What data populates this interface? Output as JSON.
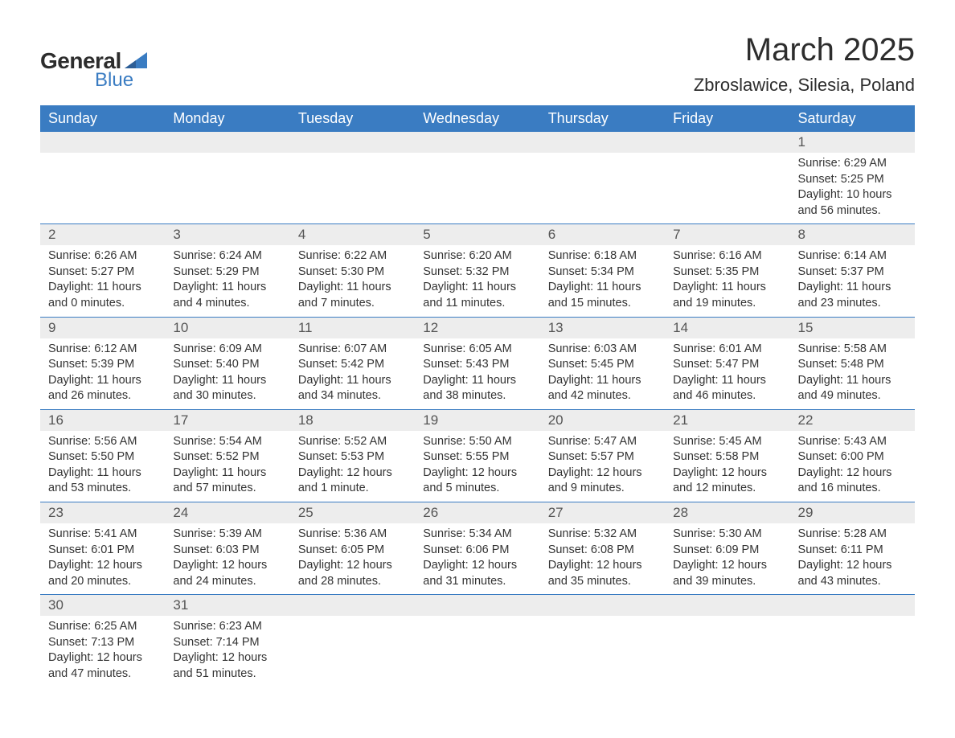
{
  "logo": {
    "text_general": "General",
    "text_blue": "Blue"
  },
  "title": "March 2025",
  "location": "Zbroslawice, Silesia, Poland",
  "colors": {
    "header_bg": "#3a7cc2",
    "header_text": "#ffffff",
    "daynum_bg": "#ededed",
    "text": "#333333",
    "border": "#3a7cc2",
    "page_bg": "#ffffff"
  },
  "typography": {
    "title_fontsize": 40,
    "location_fontsize": 22,
    "weekday_fontsize": 18,
    "daynum_fontsize": 17,
    "body_fontsize": 14.5
  },
  "weekdays": [
    "Sunday",
    "Monday",
    "Tuesday",
    "Wednesday",
    "Thursday",
    "Friday",
    "Saturday"
  ],
  "labels": {
    "sunrise": "Sunrise",
    "sunset": "Sunset",
    "daylight": "Daylight"
  },
  "weeks": [
    [
      null,
      null,
      null,
      null,
      null,
      null,
      {
        "day": "1",
        "sunrise": "6:29 AM",
        "sunset": "5:25 PM",
        "daylight": "10 hours and 56 minutes."
      }
    ],
    [
      {
        "day": "2",
        "sunrise": "6:26 AM",
        "sunset": "5:27 PM",
        "daylight": "11 hours and 0 minutes."
      },
      {
        "day": "3",
        "sunrise": "6:24 AM",
        "sunset": "5:29 PM",
        "daylight": "11 hours and 4 minutes."
      },
      {
        "day": "4",
        "sunrise": "6:22 AM",
        "sunset": "5:30 PM",
        "daylight": "11 hours and 7 minutes."
      },
      {
        "day": "5",
        "sunrise": "6:20 AM",
        "sunset": "5:32 PM",
        "daylight": "11 hours and 11 minutes."
      },
      {
        "day": "6",
        "sunrise": "6:18 AM",
        "sunset": "5:34 PM",
        "daylight": "11 hours and 15 minutes."
      },
      {
        "day": "7",
        "sunrise": "6:16 AM",
        "sunset": "5:35 PM",
        "daylight": "11 hours and 19 minutes."
      },
      {
        "day": "8",
        "sunrise": "6:14 AM",
        "sunset": "5:37 PM",
        "daylight": "11 hours and 23 minutes."
      }
    ],
    [
      {
        "day": "9",
        "sunrise": "6:12 AM",
        "sunset": "5:39 PM",
        "daylight": "11 hours and 26 minutes."
      },
      {
        "day": "10",
        "sunrise": "6:09 AM",
        "sunset": "5:40 PM",
        "daylight": "11 hours and 30 minutes."
      },
      {
        "day": "11",
        "sunrise": "6:07 AM",
        "sunset": "5:42 PM",
        "daylight": "11 hours and 34 minutes."
      },
      {
        "day": "12",
        "sunrise": "6:05 AM",
        "sunset": "5:43 PM",
        "daylight": "11 hours and 38 minutes."
      },
      {
        "day": "13",
        "sunrise": "6:03 AM",
        "sunset": "5:45 PM",
        "daylight": "11 hours and 42 minutes."
      },
      {
        "day": "14",
        "sunrise": "6:01 AM",
        "sunset": "5:47 PM",
        "daylight": "11 hours and 46 minutes."
      },
      {
        "day": "15",
        "sunrise": "5:58 AM",
        "sunset": "5:48 PM",
        "daylight": "11 hours and 49 minutes."
      }
    ],
    [
      {
        "day": "16",
        "sunrise": "5:56 AM",
        "sunset": "5:50 PM",
        "daylight": "11 hours and 53 minutes."
      },
      {
        "day": "17",
        "sunrise": "5:54 AM",
        "sunset": "5:52 PM",
        "daylight": "11 hours and 57 minutes."
      },
      {
        "day": "18",
        "sunrise": "5:52 AM",
        "sunset": "5:53 PM",
        "daylight": "12 hours and 1 minute."
      },
      {
        "day": "19",
        "sunrise": "5:50 AM",
        "sunset": "5:55 PM",
        "daylight": "12 hours and 5 minutes."
      },
      {
        "day": "20",
        "sunrise": "5:47 AM",
        "sunset": "5:57 PM",
        "daylight": "12 hours and 9 minutes."
      },
      {
        "day": "21",
        "sunrise": "5:45 AM",
        "sunset": "5:58 PM",
        "daylight": "12 hours and 12 minutes."
      },
      {
        "day": "22",
        "sunrise": "5:43 AM",
        "sunset": "6:00 PM",
        "daylight": "12 hours and 16 minutes."
      }
    ],
    [
      {
        "day": "23",
        "sunrise": "5:41 AM",
        "sunset": "6:01 PM",
        "daylight": "12 hours and 20 minutes."
      },
      {
        "day": "24",
        "sunrise": "5:39 AM",
        "sunset": "6:03 PM",
        "daylight": "12 hours and 24 minutes."
      },
      {
        "day": "25",
        "sunrise": "5:36 AM",
        "sunset": "6:05 PM",
        "daylight": "12 hours and 28 minutes."
      },
      {
        "day": "26",
        "sunrise": "5:34 AM",
        "sunset": "6:06 PM",
        "daylight": "12 hours and 31 minutes."
      },
      {
        "day": "27",
        "sunrise": "5:32 AM",
        "sunset": "6:08 PM",
        "daylight": "12 hours and 35 minutes."
      },
      {
        "day": "28",
        "sunrise": "5:30 AM",
        "sunset": "6:09 PM",
        "daylight": "12 hours and 39 minutes."
      },
      {
        "day": "29",
        "sunrise": "5:28 AM",
        "sunset": "6:11 PM",
        "daylight": "12 hours and 43 minutes."
      }
    ],
    [
      {
        "day": "30",
        "sunrise": "6:25 AM",
        "sunset": "7:13 PM",
        "daylight": "12 hours and 47 minutes."
      },
      {
        "day": "31",
        "sunrise": "6:23 AM",
        "sunset": "7:14 PM",
        "daylight": "12 hours and 51 minutes."
      },
      null,
      null,
      null,
      null,
      null
    ]
  ]
}
